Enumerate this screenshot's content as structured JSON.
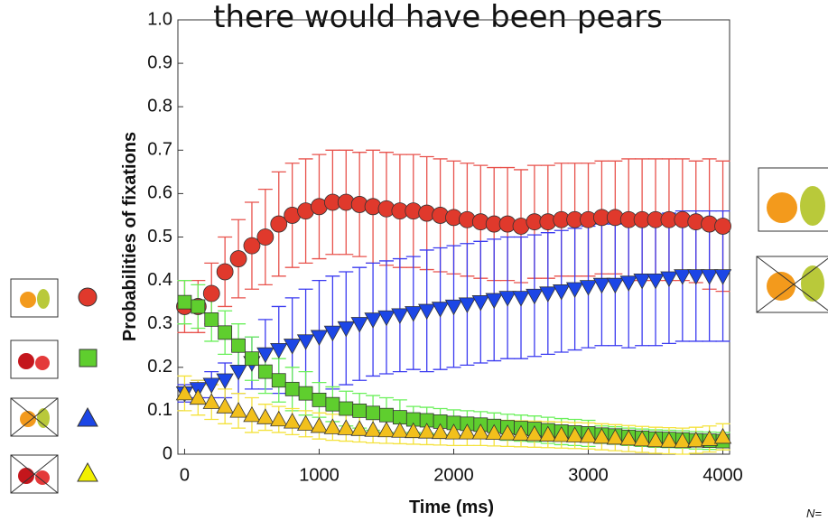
{
  "chart_data": {
    "type": "scatter_error",
    "title": "there would have been pears",
    "xlabel": "Time (ms)",
    "ylabel": "Probabilities of fixations",
    "footnote": "N=",
    "x": [
      0,
      100,
      200,
      300,
      400,
      500,
      600,
      700,
      800,
      900,
      1000,
      1100,
      1200,
      1300,
      1400,
      1500,
      1600,
      1700,
      1800,
      1900,
      2000,
      2100,
      2200,
      2300,
      2400,
      2500,
      2600,
      2700,
      2800,
      2900,
      3000,
      3100,
      3200,
      3300,
      3400,
      3500,
      3600,
      3700,
      3800,
      3900,
      4000
    ],
    "xlim": [
      -50,
      4050
    ],
    "xticks": [
      0,
      1000,
      2000,
      3000,
      4000
    ],
    "ylim": [
      0,
      1
    ],
    "yticks": [
      0,
      0.1,
      0.2,
      0.3,
      0.4,
      0.5,
      0.6,
      0.7,
      0.8,
      0.9,
      {
        "value": 1,
        "label": "1.0"
      }
    ],
    "series": [
      {
        "marker": "circle",
        "color": "#e0392c",
        "error_color": "#e8524c",
        "values": [
          0.34,
          0.34,
          0.37,
          0.42,
          0.45,
          0.48,
          0.5,
          0.53,
          0.55,
          0.56,
          0.57,
          0.58,
          0.58,
          0.575,
          0.57,
          0.565,
          0.56,
          0.56,
          0.555,
          0.55,
          0.545,
          0.54,
          0.535,
          0.53,
          0.53,
          0.525,
          0.535,
          0.535,
          0.54,
          0.54,
          0.54,
          0.545,
          0.545,
          0.54,
          0.54,
          0.54,
          0.54,
          0.54,
          0.535,
          0.53,
          0.525
        ],
        "errors": [
          0.06,
          0.06,
          0.07,
          0.08,
          0.09,
          0.1,
          0.11,
          0.12,
          0.12,
          0.12,
          0.12,
          0.12,
          0.12,
          0.12,
          0.13,
          0.13,
          0.13,
          0.13,
          0.13,
          0.13,
          0.13,
          0.13,
          0.13,
          0.13,
          0.13,
          0.13,
          0.13,
          0.13,
          0.13,
          0.13,
          0.13,
          0.13,
          0.13,
          0.14,
          0.14,
          0.14,
          0.14,
          0.14,
          0.14,
          0.15,
          0.15
        ]
      },
      {
        "marker": "triangle-down",
        "color": "#1c46e6",
        "error_color": "#3a3af0",
        "values": [
          0.14,
          0.15,
          0.16,
          0.17,
          0.19,
          0.21,
          0.23,
          0.24,
          0.25,
          0.26,
          0.27,
          0.28,
          0.29,
          0.3,
          0.31,
          0.315,
          0.32,
          0.325,
          0.33,
          0.335,
          0.34,
          0.345,
          0.35,
          0.355,
          0.36,
          0.36,
          0.365,
          0.37,
          0.375,
          0.38,
          0.385,
          0.39,
          0.39,
          0.395,
          0.4,
          0.4,
          0.405,
          0.41,
          0.41,
          0.41,
          0.41
        ],
        "errors": [
          0.02,
          0.02,
          0.03,
          0.04,
          0.05,
          0.06,
          0.08,
          0.1,
          0.11,
          0.12,
          0.13,
          0.13,
          0.13,
          0.13,
          0.13,
          0.13,
          0.13,
          0.13,
          0.14,
          0.14,
          0.14,
          0.14,
          0.14,
          0.14,
          0.14,
          0.14,
          0.14,
          0.14,
          0.14,
          0.14,
          0.14,
          0.14,
          0.14,
          0.15,
          0.15,
          0.15,
          0.15,
          0.15,
          0.15,
          0.15,
          0.15
        ]
      },
      {
        "marker": "square",
        "color": "#5fce2e",
        "error_color": "#6af05a",
        "values": [
          0.35,
          0.34,
          0.31,
          0.28,
          0.25,
          0.22,
          0.19,
          0.17,
          0.15,
          0.14,
          0.125,
          0.115,
          0.105,
          0.1,
          0.095,
          0.09,
          0.085,
          0.08,
          0.078,
          0.075,
          0.072,
          0.07,
          0.068,
          0.065,
          0.062,
          0.06,
          0.058,
          0.055,
          0.052,
          0.05,
          0.048,
          0.045,
          0.043,
          0.04,
          0.038,
          0.036,
          0.035,
          0.034,
          0.032,
          0.031,
          0.03
        ],
        "errors": [
          0.05,
          0.05,
          0.05,
          0.05,
          0.05,
          0.05,
          0.05,
          0.05,
          0.05,
          0.05,
          0.04,
          0.04,
          0.04,
          0.04,
          0.04,
          0.04,
          0.04,
          0.03,
          0.03,
          0.03,
          0.03,
          0.03,
          0.03,
          0.03,
          0.03,
          0.03,
          0.03,
          0.03,
          0.03,
          0.03,
          0.03,
          0.02,
          0.02,
          0.02,
          0.02,
          0.02,
          0.02,
          0.02,
          0.02,
          0.02,
          0.02
        ]
      },
      {
        "marker": "triangle-up",
        "color": "#f2c01c",
        "error_color": "#f4e23c",
        "values": [
          0.14,
          0.13,
          0.12,
          0.11,
          0.1,
          0.09,
          0.085,
          0.08,
          0.075,
          0.07,
          0.065,
          0.062,
          0.06,
          0.058,
          0.056,
          0.055,
          0.054,
          0.053,
          0.052,
          0.051,
          0.05,
          0.05,
          0.05,
          0.049,
          0.048,
          0.047,
          0.046,
          0.045,
          0.044,
          0.043,
          0.042,
          0.04,
          0.038,
          0.036,
          0.034,
          0.032,
          0.031,
          0.03,
          0.032,
          0.035,
          0.04
        ],
        "errors": [
          0.04,
          0.04,
          0.04,
          0.04,
          0.04,
          0.04,
          0.03,
          0.03,
          0.03,
          0.03,
          0.03,
          0.03,
          0.03,
          0.03,
          0.03,
          0.03,
          0.03,
          0.03,
          0.03,
          0.03,
          0.03,
          0.03,
          0.03,
          0.03,
          0.03,
          0.03,
          0.03,
          0.03,
          0.03,
          0.03,
          0.03,
          0.03,
          0.03,
          0.03,
          0.03,
          0.03,
          0.03,
          0.03,
          0.03,
          0.03,
          0.03
        ]
      }
    ]
  }
}
